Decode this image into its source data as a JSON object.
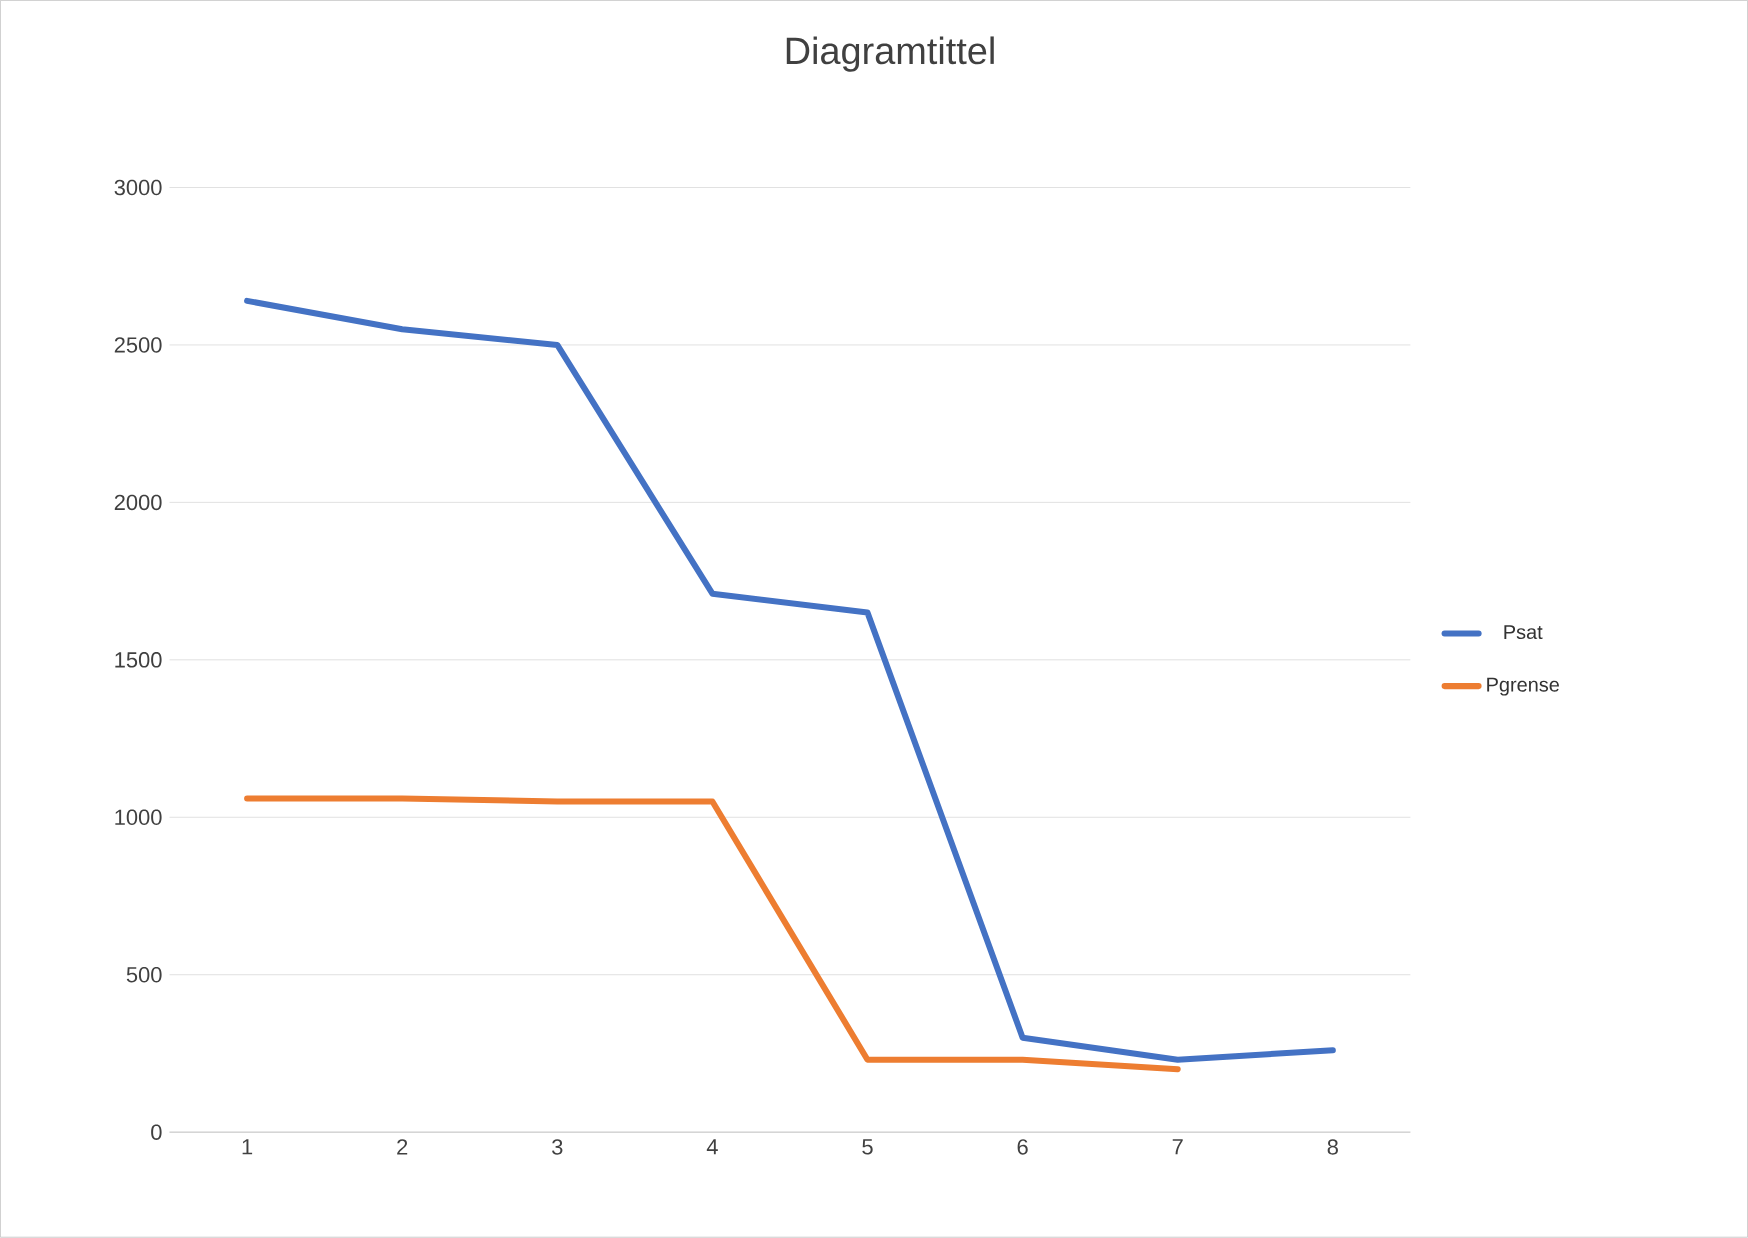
{
  "chart_data": {
    "type": "line",
    "title": "Diagramtittel",
    "categories": [
      "1",
      "2",
      "3",
      "4",
      "5",
      "6",
      "7",
      "8"
    ],
    "series": [
      {
        "name": "Psat",
        "color": "#4472c4",
        "values": [
          2640,
          2550,
          2500,
          1710,
          1650,
          300,
          230,
          260
        ]
      },
      {
        "name": "Pgrense",
        "color": "#ed7d31",
        "values": [
          1060,
          1060,
          1050,
          1050,
          230,
          230,
          200,
          null
        ]
      }
    ],
    "ylim": [
      0,
      3000
    ],
    "yticks": [
      0,
      500,
      1000,
      1500,
      2000,
      2500,
      3000
    ],
    "grid": "y",
    "legend": "right",
    "marker": "none",
    "line_style": "solid"
  }
}
